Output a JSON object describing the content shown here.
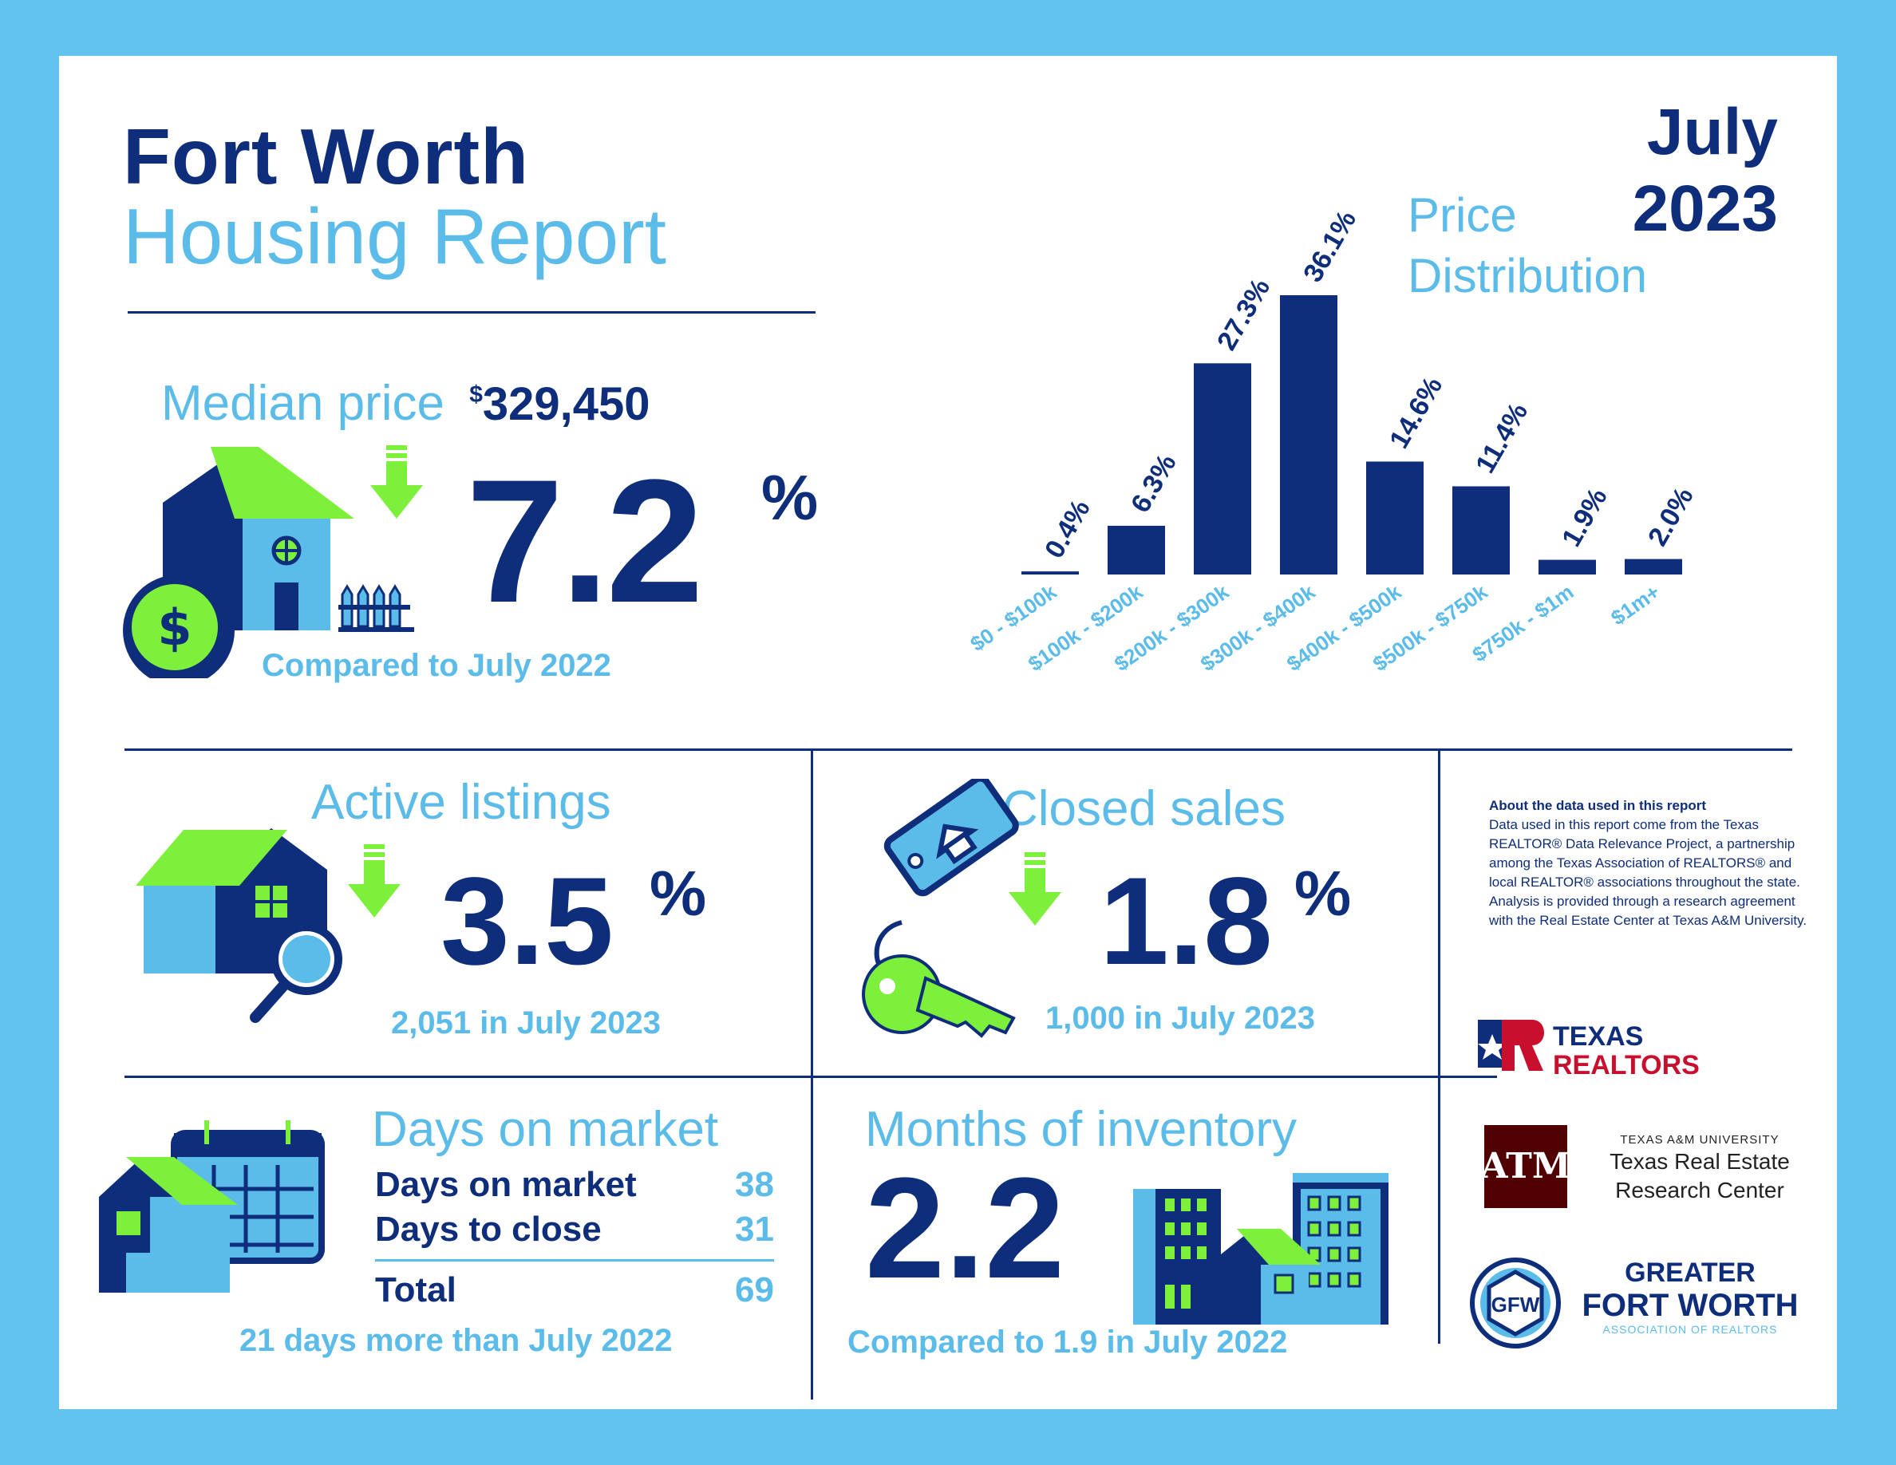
{
  "header": {
    "city": "Fort Worth",
    "report": "Housing Report",
    "month": "July",
    "year": "2023"
  },
  "median": {
    "label": "Median price",
    "currency": "$",
    "value": "329,450",
    "change": "7.2",
    "percent": "%",
    "direction": "up",
    "note": "Compared to July 2022"
  },
  "chart_title": {
    "line1": "Price",
    "line2": "Distribution"
  },
  "chart_data": {
    "type": "bar",
    "categories": [
      "$0 - $100k",
      "$100k - $200k",
      "$200k - $300k",
      "$300k - $400k",
      "$400k - $500k",
      "$500k - $750k",
      "$750k - $1m",
      "$1m+"
    ],
    "values": [
      0.4,
      6.3,
      27.3,
      36.1,
      14.6,
      11.4,
      1.9,
      2.0
    ],
    "labels": [
      "0.4%",
      "6.3%",
      "27.3%",
      "36.1%",
      "14.6%",
      "11.4%",
      "1.9%",
      "2.0%"
    ],
    "ylim": [
      0,
      36.1
    ],
    "color": "#0e2d7a",
    "label_color": "#5bbbe9"
  },
  "active": {
    "label": "Active listings",
    "change": "3.5",
    "percent": "%",
    "direction": "down",
    "note": "2,051 in July 2023"
  },
  "closed": {
    "label": "Closed sales",
    "change": "1.8",
    "percent": "%",
    "direction": "down",
    "note": "1,000 in July 2023"
  },
  "days": {
    "label": "Days on market",
    "rows": [
      {
        "label": "Days on market",
        "value": "38"
      },
      {
        "label": "Days to close",
        "value": "31"
      }
    ],
    "total_label": "Total",
    "total_value": "69",
    "note": "21 days more than July 2022"
  },
  "inventory": {
    "label": "Months of inventory",
    "value": "2.2",
    "note": "Compared to 1.9 in July 2022"
  },
  "about": {
    "heading": "About the data used in this report",
    "body": "Data used in this report come from the Texas REALTOR® Data Relevance Project, a partnership among the Texas Association of REALTORS® and local REALTOR® associations throughout the state. Analysis is provided through a research agreement with the Real Estate Center at Texas A&M University."
  },
  "logos": {
    "texas_realtors": [
      "TEXAS",
      "REALTORS"
    ],
    "tamu": {
      "line1": "TEXAS A&M UNIVERSITY",
      "line2": "Texas Real Estate",
      "line3": "Research Center"
    },
    "gfw": {
      "line1": "GREATER",
      "line2": "FORT WORTH",
      "line3": "ASSOCIATION OF REALTORS"
    }
  },
  "colors": {
    "navy": "#0e2d7a",
    "sky": "#5bbbe9",
    "green": "#7df03c",
    "mid": "#5bbbe9",
    "border": "#62c2f0"
  }
}
